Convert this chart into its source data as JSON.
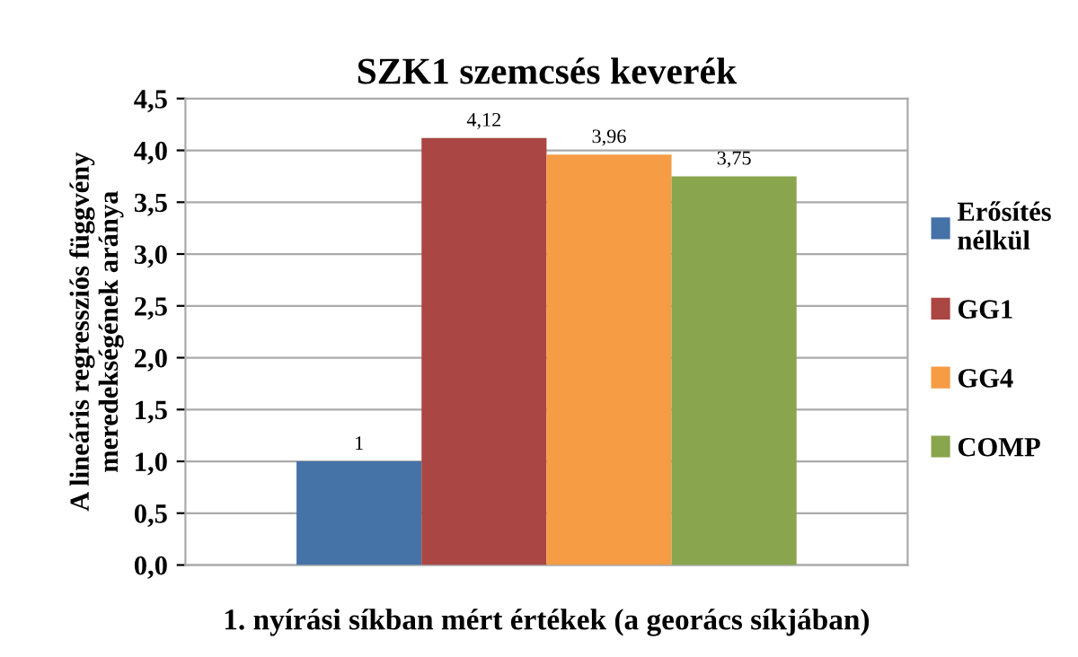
{
  "chart_data": {
    "type": "bar",
    "title": "SZK1 szemcsés keverék",
    "xlabel": "1. nyírási síkban mért értékek (a georács síkjában)",
    "ylabel": "A lineáris regressziós függvény\nmeredekségének aránya",
    "categories": [
      null
    ],
    "series": [
      {
        "name": "Erősítés\nnélkül",
        "color": "#4572a7",
        "values": [
          1
        ],
        "value_labels": [
          "1"
        ]
      },
      {
        "name": "GG1",
        "color": "#aa4643",
        "values": [
          4.12
        ],
        "value_labels": [
          "4,12"
        ]
      },
      {
        "name": "GG4",
        "color": "#f59c45",
        "values": [
          3.96
        ],
        "value_labels": [
          "3,96"
        ]
      },
      {
        "name": "COMP",
        "color": "#89a54e",
        "values": [
          3.75
        ],
        "value_labels": [
          "3,75"
        ]
      }
    ],
    "ylim": [
      0,
      4.5
    ],
    "yticks": [
      {
        "value": 0,
        "label": "0,0"
      },
      {
        "value": 0.5,
        "label": "0,5"
      },
      {
        "value": 1,
        "label": "1,0"
      },
      {
        "value": 1.5,
        "label": "1,5"
      },
      {
        "value": 2,
        "label": "2,0"
      },
      {
        "value": 2.5,
        "label": "2,5"
      },
      {
        "value": 3,
        "label": "3,0"
      },
      {
        "value": 3.5,
        "label": "3,5"
      },
      {
        "value": 4,
        "label": "4,0"
      },
      {
        "value": 4.5,
        "label": "4,5"
      }
    ],
    "grid": "y",
    "legend": "right"
  }
}
